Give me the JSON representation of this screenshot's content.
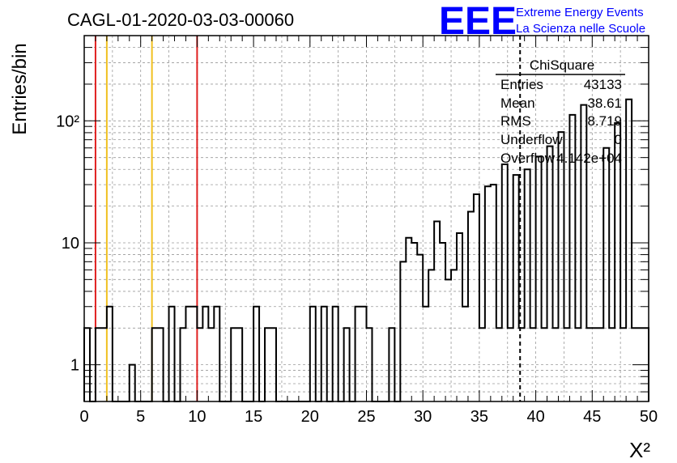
{
  "title": "CAGL-01-2020-03-03-00060",
  "logo": {
    "letters": "EEE",
    "line1": "Extreme Energy Events",
    "line2": "La Scienza nelle Scuole",
    "color": "#0000ff"
  },
  "stats_box": {
    "header": "ChiSquare",
    "rows": [
      {
        "label": "Entries",
        "value": "43133"
      },
      {
        "label": "Mean",
        "value": "38.61"
      },
      {
        "label": "RMS",
        "value": "8.719"
      },
      {
        "label": "Underflow",
        "value": "0"
      },
      {
        "label": "Overflow",
        "value": "4.142e+04"
      }
    ]
  },
  "chart_data": {
    "type": "histogram",
    "title": "CAGL-01-2020-03-03-00060",
    "xlabel": "X²",
    "ylabel": "Entries/bin",
    "xlim": [
      0,
      50
    ],
    "ylim": [
      0.5,
      500
    ],
    "yscale": "log",
    "grid": true,
    "bin_width": 0.5,
    "x_ticks": [
      "0",
      "5",
      "10",
      "15",
      "20",
      "25",
      "30",
      "35",
      "40",
      "45",
      "50"
    ],
    "y_ticks": [
      {
        "value": 1,
        "label": "1"
      },
      {
        "value": 10,
        "label": "10"
      },
      {
        "value": 100,
        "label": "10²"
      }
    ],
    "bin_values": [
      2,
      0,
      2,
      2,
      3,
      0,
      0,
      0,
      1,
      0,
      0,
      0,
      2,
      2,
      0,
      3,
      0,
      2,
      3,
      3,
      2,
      3,
      2,
      3,
      0,
      0,
      2,
      2,
      0,
      0,
      3,
      0,
      2,
      2,
      0,
      0,
      0,
      0,
      0,
      0,
      3,
      0,
      3,
      0,
      3,
      0,
      2,
      0,
      3,
      3,
      2,
      0,
      0,
      0,
      2,
      0,
      7,
      11,
      10,
      8,
      3,
      6,
      15,
      10,
      5,
      6,
      12,
      3,
      18,
      25,
      2,
      29,
      30,
      2,
      44,
      2,
      36,
      2,
      40,
      2,
      51,
      2,
      62,
      2,
      81,
      2,
      112,
      2,
      135,
      2,
      2,
      2,
      60,
      2,
      96,
      2,
      150,
      2,
      2,
      2
    ],
    "vertical_lines": [
      {
        "x": 1.0,
        "color": "#e02020"
      },
      {
        "x": 2.0,
        "color": "#f0c020"
      },
      {
        "x": 6.0,
        "color": "#f0c020"
      },
      {
        "x": 10.0,
        "color": "#e02020"
      },
      {
        "x": 38.61,
        "color": "#000000",
        "style": "dashed"
      }
    ]
  }
}
